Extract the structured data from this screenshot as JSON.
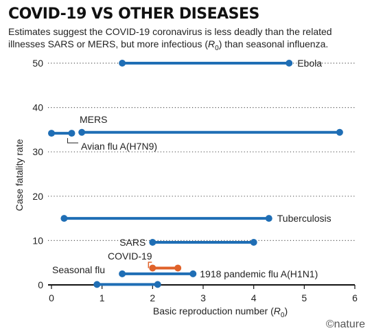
{
  "title": "COVID-19 VS OTHER DISEASES",
  "subtitle_pre": "Estimates suggest the COVID-19 coronavirus is less deadly than the related illnesses SARS or MERS, but more infectious (",
  "subtitle_r": "R",
  "subtitle_sub": "0",
  "subtitle_post": ") than seasonal influenza.",
  "credit": "©nature",
  "colors": {
    "series": "#1f6eb5",
    "highlight": "#e0622a",
    "grid": "#555555"
  },
  "chart_data": {
    "type": "dumbbell",
    "title": "COVID-19 VS OTHER DISEASES",
    "xlabel": "Basic reproduction number (R0)",
    "xlabel_main": "Basic reproduction number (",
    "xlabel_var": "R",
    "xlabel_sub": "0",
    "xlabel_end": ")",
    "ylabel": "Case fatality rate",
    "xlim": [
      0,
      6
    ],
    "ylim": [
      0,
      50
    ],
    "xticks": [
      0,
      1,
      2,
      3,
      4,
      5,
      6
    ],
    "yticks": [
      0,
      10,
      20,
      30,
      40,
      50
    ],
    "grid": "horizontal dotted",
    "diseases": [
      {
        "name": "Ebola",
        "x_min": 1.4,
        "x_max": 4.7,
        "y": 50,
        "highlight": false
      },
      {
        "name": "MERS",
        "x_min": 0.6,
        "x_max": 5.7,
        "y": 34.4,
        "highlight": false
      },
      {
        "name": "Avian flu A(H7N9)",
        "x_min": 0.0,
        "x_max": 0.4,
        "y": 34.2,
        "highlight": false
      },
      {
        "name": "Tuberculosis",
        "x_min": 0.25,
        "x_max": 4.3,
        "y": 15,
        "highlight": false
      },
      {
        "name": "SARS",
        "x_min": 2.0,
        "x_max": 4.0,
        "y": 9.6,
        "highlight": false
      },
      {
        "name": "COVID-19",
        "x_min": 2.0,
        "x_max": 2.5,
        "y": 3.8,
        "highlight": true
      },
      {
        "name": "1918 pandemic flu A(H1N1)",
        "x_min": 1.4,
        "x_max": 2.8,
        "y": 2.5,
        "highlight": false
      },
      {
        "name": "Seasonal flu",
        "x_min": 0.9,
        "x_max": 2.1,
        "y": 0.1,
        "highlight": false
      }
    ]
  }
}
